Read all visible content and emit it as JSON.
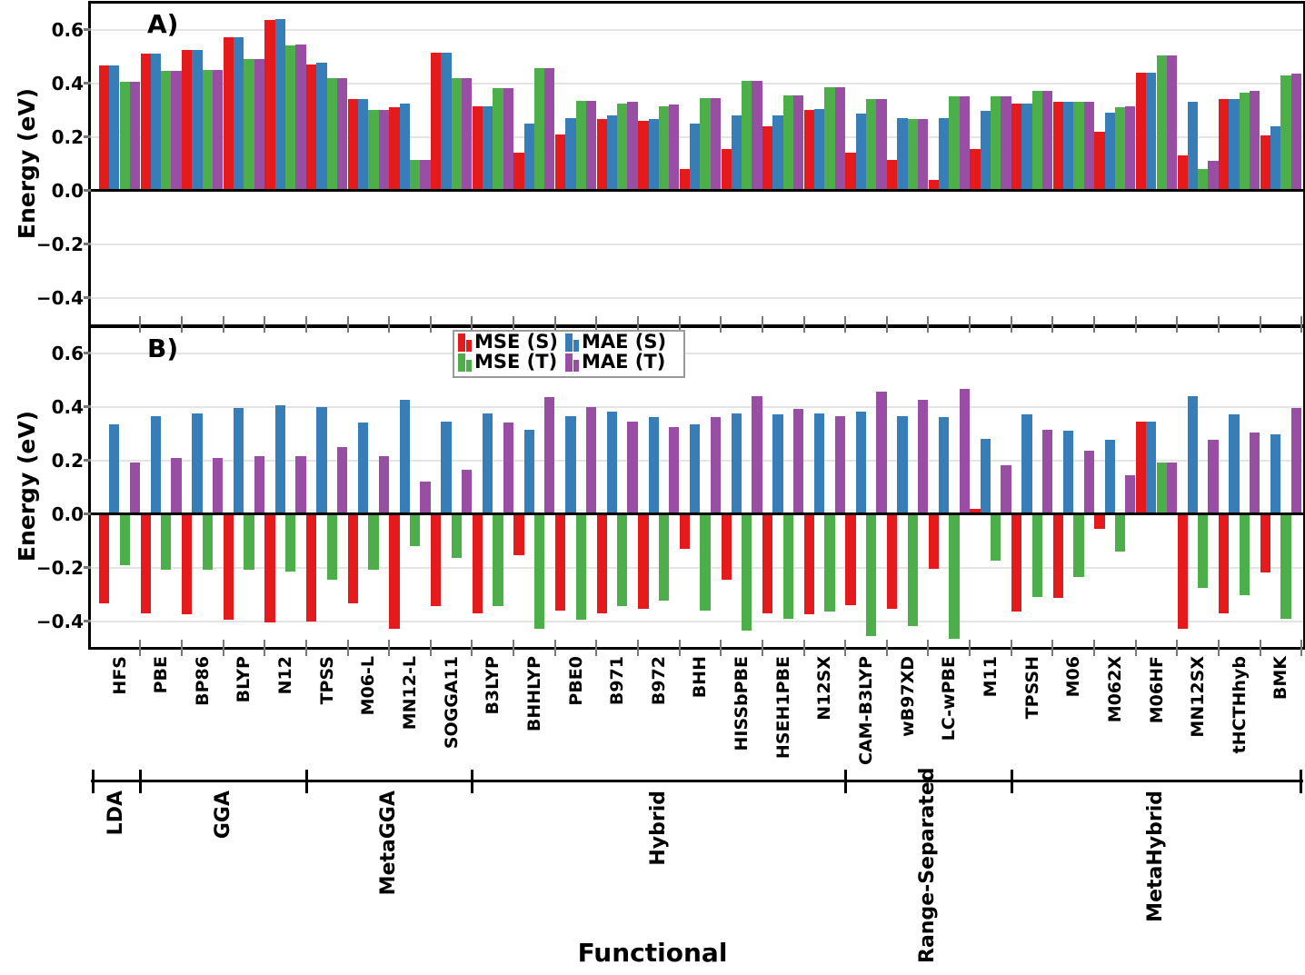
{
  "figure": {
    "x_label": "Functional",
    "y_label": "Energy (eV)",
    "y_tick_labels": [
      "0.6",
      "0.4",
      "0.2",
      "0.0",
      "−0.2",
      "−0.4"
    ],
    "y_tick_values": [
      0.6,
      0.4,
      0.2,
      0.0,
      -0.2,
      -0.4
    ]
  },
  "legend": {
    "items": [
      {
        "label": "MSE (S)",
        "color": "#e41a1c"
      },
      {
        "label": "MAE (S)",
        "color": "#377eb8"
      },
      {
        "label": "MSE (T)",
        "color": "#4daf4a"
      },
      {
        "label": "MAE (T)",
        "color": "#984ea3"
      }
    ]
  },
  "chart_data": {
    "type": "bar",
    "categories": [
      "HFS",
      "PBE",
      "BP86",
      "BLYP",
      "N12",
      "TPSS",
      "M06-L",
      "MN12-L",
      "SOGGA11",
      "B3LYP",
      "BHHLYP",
      "PBE0",
      "B971",
      "B972",
      "BHH",
      "HISSbPBE",
      "HSEH1PBE",
      "N12SX",
      "CAM-B3LYP",
      "wB97XD",
      "LC-wPBE",
      "M11",
      "TPSSH",
      "M06",
      "M062X",
      "M06HF",
      "MN12SX",
      "tHCTHhyb",
      "BMK"
    ],
    "category_groups": [
      {
        "label": "LDA",
        "start": 0,
        "end": 0
      },
      {
        "label": "GGA",
        "start": 1,
        "end": 4
      },
      {
        "label": "MetaGGA",
        "start": 5,
        "end": 8
      },
      {
        "label": "Hybrid",
        "start": 9,
        "end": 17
      },
      {
        "label": "Range-Separated",
        "start": 18,
        "end": 21
      },
      {
        "label": "MetaHybrid",
        "start": 22,
        "end": 28
      }
    ],
    "ylim": [
      -0.5,
      0.695
    ],
    "grid": "horizontal-light",
    "legend_position": "upper-center-panel-B",
    "panels": [
      {
        "tag": "A)",
        "series": [
          {
            "name": "MSE (S)",
            "color": "#e41a1c",
            "values": [
              0.465,
              0.51,
              0.525,
              0.57,
              0.635,
              0.47,
              0.34,
              0.31,
              0.515,
              0.315,
              0.14,
              0.21,
              0.265,
              0.26,
              0.08,
              0.155,
              0.24,
              0.3,
              0.14,
              0.115,
              0.04,
              0.155,
              0.325,
              0.33,
              0.22,
              0.44,
              0.13,
              0.34,
              0.205
            ]
          },
          {
            "name": "MAE (S)",
            "color": "#377eb8",
            "values": [
              0.465,
              0.51,
              0.525,
              0.57,
              0.64,
              0.475,
              0.34,
              0.325,
              0.515,
              0.315,
              0.25,
              0.27,
              0.28,
              0.265,
              0.25,
              0.28,
              0.28,
              0.305,
              0.285,
              0.27,
              0.27,
              0.295,
              0.325,
              0.33,
              0.29,
              0.44,
              0.33,
              0.34,
              0.24
            ]
          },
          {
            "name": "MSE (T)",
            "color": "#4daf4a",
            "values": [
              0.405,
              0.445,
              0.45,
              0.49,
              0.54,
              0.42,
              0.3,
              0.115,
              0.42,
              0.38,
              0.455,
              0.335,
              0.325,
              0.315,
              0.345,
              0.41,
              0.355,
              0.385,
              0.34,
              0.265,
              0.35,
              0.35,
              0.37,
              0.33,
              0.31,
              0.505,
              0.08,
              0.365,
              0.43
            ]
          },
          {
            "name": "MAE (T)",
            "color": "#984ea3",
            "values": [
              0.405,
              0.445,
              0.45,
              0.49,
              0.545,
              0.42,
              0.3,
              0.115,
              0.42,
              0.38,
              0.455,
              0.335,
              0.33,
              0.32,
              0.345,
              0.41,
              0.355,
              0.385,
              0.34,
              0.265,
              0.35,
              0.35,
              0.37,
              0.33,
              0.315,
              0.505,
              0.11,
              0.37,
              0.435
            ]
          }
        ]
      },
      {
        "tag": "B)",
        "series": [
          {
            "name": "MSE (S)",
            "color": "#e41a1c",
            "values": [
              -0.335,
              -0.37,
              -0.375,
              -0.395,
              -0.405,
              -0.4,
              -0.335,
              -0.43,
              -0.345,
              -0.37,
              -0.155,
              -0.36,
              -0.37,
              -0.355,
              -0.13,
              -0.245,
              -0.37,
              -0.375,
              -0.34,
              -0.355,
              -0.205,
              0.02,
              -0.365,
              -0.315,
              -0.055,
              0.345,
              -0.43,
              -0.37,
              -0.22
            ]
          },
          {
            "name": "MAE (S)",
            "color": "#377eb8",
            "values": [
              0.335,
              0.365,
              0.375,
              0.395,
              0.405,
              0.4,
              0.34,
              0.425,
              0.345,
              0.375,
              0.315,
              0.365,
              0.38,
              0.36,
              0.335,
              0.375,
              0.37,
              0.375,
              0.38,
              0.365,
              0.36,
              0.28,
              0.37,
              0.31,
              0.275,
              0.345,
              0.44,
              0.37,
              0.295
            ]
          },
          {
            "name": "MSE (T)",
            "color": "#4daf4a",
            "values": [
              -0.19,
              -0.21,
              -0.21,
              -0.21,
              -0.215,
              -0.245,
              -0.21,
              -0.12,
              -0.165,
              -0.345,
              -0.43,
              -0.395,
              -0.345,
              -0.325,
              -0.36,
              -0.435,
              -0.39,
              -0.365,
              -0.455,
              -0.42,
              -0.465,
              -0.175,
              -0.31,
              -0.235,
              -0.14,
              0.19,
              -0.275,
              -0.305,
              -0.39
            ]
          },
          {
            "name": "MAE (T)",
            "color": "#984ea3",
            "values": [
              0.19,
              0.21,
              0.21,
              0.215,
              0.215,
              0.25,
              0.215,
              0.12,
              0.165,
              0.34,
              0.435,
              0.4,
              0.345,
              0.325,
              0.36,
              0.44,
              0.39,
              0.365,
              0.455,
              0.425,
              0.465,
              0.18,
              0.315,
              0.235,
              0.145,
              0.19,
              0.275,
              0.305,
              0.395
            ]
          }
        ]
      }
    ]
  }
}
